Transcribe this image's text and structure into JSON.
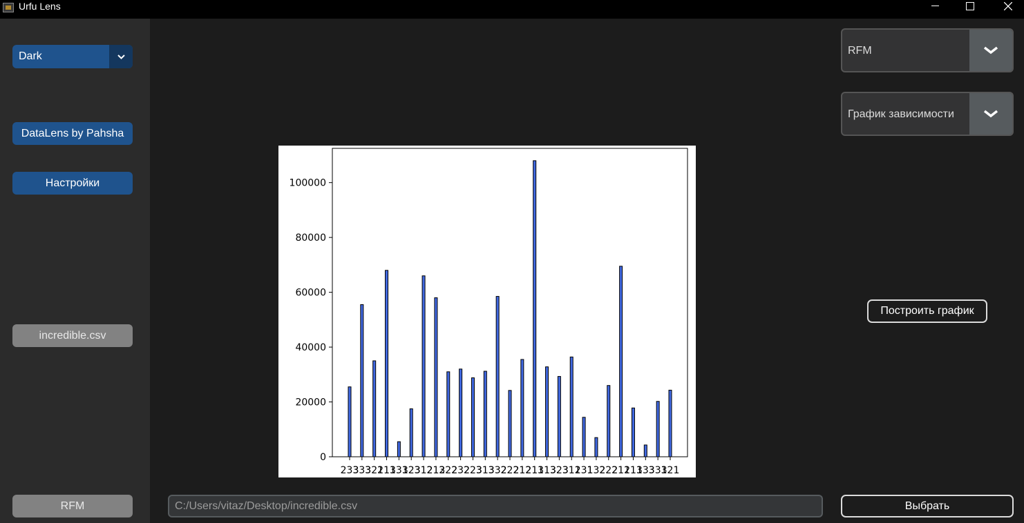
{
  "window": {
    "title": "Urfu Lens"
  },
  "sidebar": {
    "theme_value": "Dark",
    "datalens_button": "DataLens by Pahsha",
    "settings_button": "Настройки",
    "file_button": "incredible.csv",
    "rfm_button": "RFM"
  },
  "controls": {
    "analysis_value": "RFM",
    "chart_type_value": "График зависимости",
    "build_button": "Построить график",
    "choose_button": "Выбрать",
    "path_value": "C:/Users/vitaz/Desktop/incredible.csv"
  },
  "colors": {
    "sidebar_bg": "#2b2b2b",
    "main_bg": "#1c1c1c",
    "accent_blue": "#1f538d",
    "bar_fill": "#4169e1"
  },
  "chart_data": {
    "type": "bar",
    "title": "",
    "xlabel": "",
    "ylabel": "",
    "ylim": [
      0,
      112500
    ],
    "yticks": [
      0,
      20000,
      40000,
      60000,
      80000,
      100000
    ],
    "ytick_labels": [
      "0",
      "20000",
      "40000",
      "60000",
      "80000",
      "100000"
    ],
    "categories": [
      "233",
      "333",
      "322",
      "113",
      "133",
      "123",
      "312",
      "213",
      "222",
      "232",
      "223",
      "313",
      "332",
      "222",
      "212",
      "211",
      "313",
      "323",
      "311",
      "231",
      "132",
      "222",
      "211",
      "213",
      "133",
      "331",
      "321"
    ],
    "values": [
      25500,
      55500,
      35000,
      68000,
      5500,
      17500,
      66000,
      58000,
      31000,
      32000,
      28800,
      31200,
      58500,
      24200,
      35500,
      108000,
      32800,
      29300,
      36400,
      14400,
      7000,
      26000,
      69500,
      17800,
      4300,
      20200,
      24300
    ]
  }
}
